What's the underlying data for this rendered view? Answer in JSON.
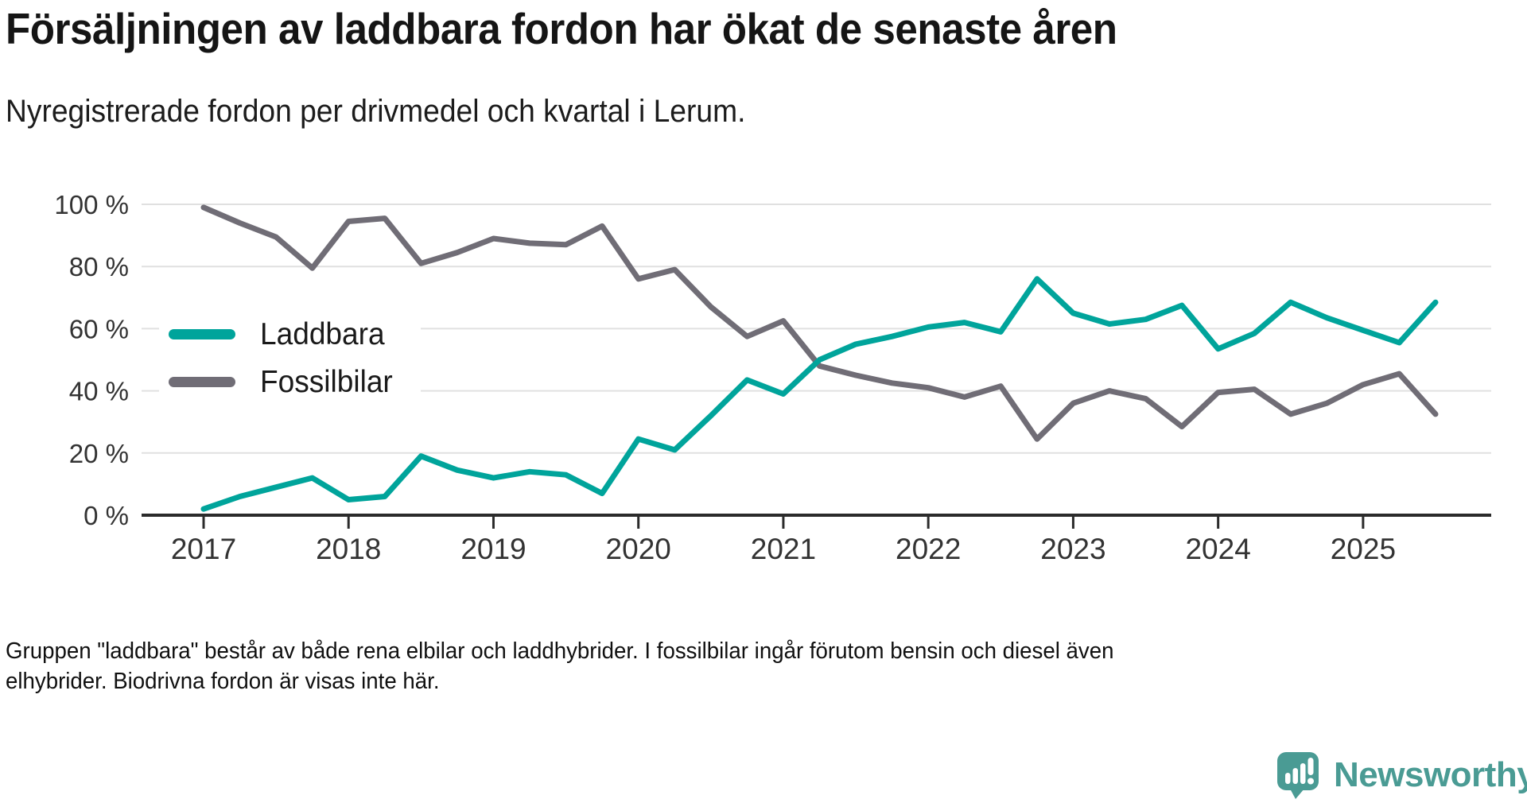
{
  "title": "Försäljningen av laddbara fordon har ökat de senaste åren",
  "subtitle": "Nyregistrerade fordon per drivmedel och kvartal i Lerum.",
  "footnote": {
    "line1": "Gruppen \"laddbara\" består av både rena elbilar och laddhybrider. I fossilbilar ingår förutom bensin och diesel även",
    "line2": "elhybrider. Biodrivna fordon är visas inte här."
  },
  "brand": {
    "name": "Newsworthy",
    "color": "#4a9b94",
    "icon": "speech-bubble-bar-chart"
  },
  "chart_data": {
    "type": "line",
    "title": "Försäljningen av laddbara fordon har ökat de senaste åren",
    "subtitle": "Nyregistrerade fordon per drivmedel och kvartal i Lerum.",
    "xlabel": "",
    "ylabel": "",
    "ylim": [
      0,
      100
    ],
    "grid": true,
    "legend_position": "inside-left",
    "x_unit": "quarter",
    "quarters": [
      "2017-Q1",
      "2017-Q2",
      "2017-Q3",
      "2017-Q4",
      "2018-Q1",
      "2018-Q2",
      "2018-Q3",
      "2018-Q4",
      "2019-Q1",
      "2019-Q2",
      "2019-Q3",
      "2019-Q4",
      "2020-Q1",
      "2020-Q2",
      "2020-Q3",
      "2020-Q4",
      "2021-Q1",
      "2021-Q2",
      "2021-Q3",
      "2021-Q4",
      "2022-Q1",
      "2022-Q2",
      "2022-Q3",
      "2022-Q4",
      "2023-Q1",
      "2023-Q2",
      "2023-Q3",
      "2023-Q4",
      "2024-Q1",
      "2024-Q2",
      "2024-Q3",
      "2024-Q4",
      "2025-Q1",
      "2025-Q2",
      "2025-Q3"
    ],
    "x_tick_labels": [
      "2017",
      "2018",
      "2019",
      "2020",
      "2021",
      "2022",
      "2023",
      "2024",
      "2025"
    ],
    "y_ticks": [
      0,
      20,
      40,
      60,
      80,
      100
    ],
    "y_tick_labels": [
      "0 %",
      "20 %",
      "40 %",
      "60 %",
      "80 %",
      "100 %"
    ],
    "series": [
      {
        "name": "Laddbara",
        "color": "#00a49b",
        "values": [
          2,
          6,
          9,
          12,
          5,
          6,
          19,
          14.5,
          12,
          14,
          13,
          7,
          24.5,
          21,
          32,
          43.5,
          39,
          50,
          55,
          57.5,
          60.5,
          62,
          59,
          76,
          65,
          61.5,
          63,
          67.5,
          53.5,
          58.5,
          68.5,
          63.5,
          59.5,
          55.5,
          68.5
        ]
      },
      {
        "name": "Fossilbilar",
        "color": "#706d76",
        "values": [
          99,
          94,
          89.5,
          79.5,
          94.5,
          95.5,
          81,
          84.5,
          89,
          87.5,
          87,
          93,
          76,
          79,
          67,
          57.5,
          62.5,
          48,
          45,
          42.5,
          41,
          38,
          41.5,
          24.5,
          36,
          40,
          37.5,
          28.5,
          39.5,
          40.5,
          32.5,
          36,
          42,
          45.5,
          32.5
        ]
      }
    ]
  }
}
